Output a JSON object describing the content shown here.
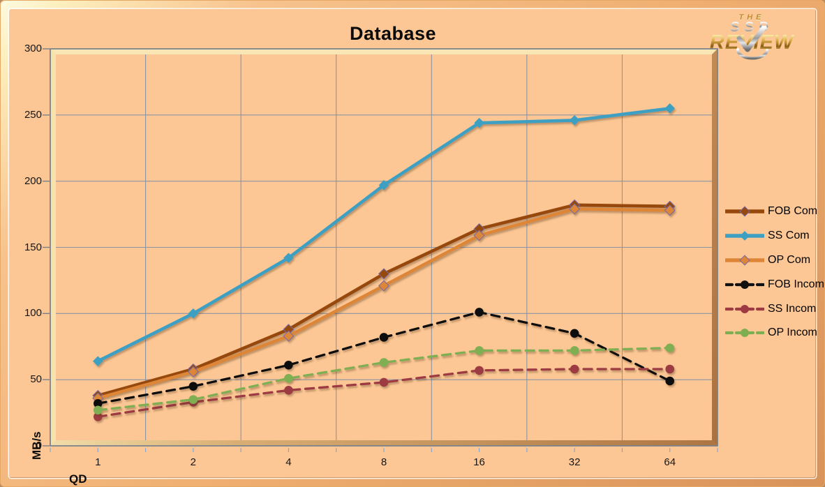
{
  "brand": {
    "line1": "THE",
    "line2": "SSD",
    "line3": "REVIEW"
  },
  "colors": {
    "background": "#FCC795",
    "frame": "#EFAE6F",
    "gridline": "#8C93A1",
    "axis": "#76808C",
    "bevel_highlight": "#F8E7B4",
    "bevel_shadow": "#AE7542"
  },
  "chart_data": {
    "type": "line",
    "title": "Database",
    "xlabel": "QD",
    "ylabel": "MB/s",
    "x_categories": [
      "1",
      "2",
      "4",
      "8",
      "16",
      "32",
      "64"
    ],
    "ylim": [
      0,
      300
    ],
    "yticks": [
      0,
      50,
      100,
      150,
      200,
      250,
      300
    ],
    "grid": true,
    "legend_position": "right",
    "series": [
      {
        "name": "FOB Com",
        "color": "#97490D",
        "style": "solid",
        "marker": "diamond",
        "marker_stroke": "#7667A5",
        "values": [
          38,
          58,
          88,
          130,
          164,
          182,
          181
        ]
      },
      {
        "name": "SS Com",
        "color": "#3DA0C3",
        "style": "solid",
        "marker": "diamond",
        "marker_stroke": "",
        "values": [
          64,
          100,
          142,
          197,
          244,
          246,
          255
        ]
      },
      {
        "name": "OP Com",
        "color": "#DE8638",
        "style": "solid",
        "marker": "diamond",
        "marker_stroke": "#7667A5",
        "values": [
          36,
          56,
          83,
          121,
          159,
          179,
          178
        ]
      },
      {
        "name": "FOB Incom",
        "color": "#111111",
        "style": "dashed",
        "marker": "circle",
        "marker_stroke": "",
        "values": [
          32,
          45,
          61,
          82,
          101,
          85,
          49
        ]
      },
      {
        "name": "SS Incom",
        "color": "#9D3A43",
        "style": "dashed",
        "marker": "circle",
        "marker_stroke": "",
        "values": [
          22,
          33,
          42,
          48,
          57,
          58,
          58
        ]
      },
      {
        "name": "OP Incom",
        "color": "#7FAE52",
        "style": "dashed",
        "marker": "circle",
        "marker_stroke": "",
        "values": [
          27,
          35,
          51,
          63,
          72,
          72,
          74
        ]
      }
    ]
  }
}
